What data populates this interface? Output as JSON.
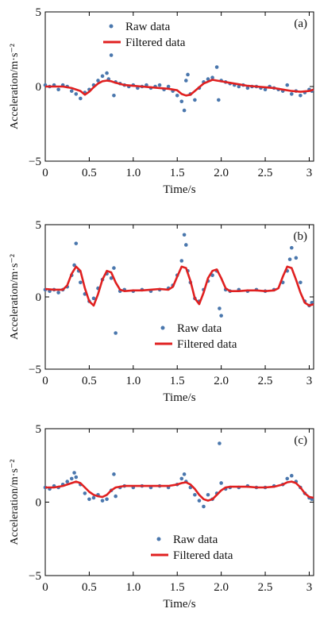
{
  "figure": {
    "panels_count": 3,
    "colors": {
      "raw": "#4a77ad",
      "filtered": "#e02020",
      "axis": "#000000"
    }
  },
  "chart_data": [
    {
      "type": "scatter",
      "panel_label": "(a)",
      "xlabel": "Time/s",
      "ylabel": "Acceleration/m·s⁻²",
      "xlim": [
        0,
        3.05
      ],
      "ylim": [
        -5,
        5
      ],
      "xticks": [
        0,
        0.5,
        1.0,
        1.5,
        2.0,
        2.5,
        3
      ],
      "xtick_labels": [
        "0",
        "0.5",
        "1.0",
        "1.5",
        "2.0",
        "2.5",
        "3"
      ],
      "yticks": [
        -5,
        0,
        5
      ],
      "ytick_labels": [
        "−5",
        "0",
        "5"
      ],
      "legend": {
        "position": "top-center",
        "entries": [
          "Raw data",
          "Filtered data"
        ]
      },
      "series": [
        {
          "name": "Raw data",
          "kind": "points",
          "x": [
            0.0,
            0.05,
            0.1,
            0.15,
            0.2,
            0.25,
            0.3,
            0.35,
            0.4,
            0.45,
            0.5,
            0.55,
            0.6,
            0.65,
            0.7,
            0.72,
            0.75,
            0.78,
            0.8,
            0.85,
            0.9,
            0.95,
            1.0,
            1.05,
            1.1,
            1.15,
            1.2,
            1.25,
            1.3,
            1.35,
            1.4,
            1.45,
            1.5,
            1.55,
            1.58,
            1.6,
            1.62,
            1.65,
            1.7,
            1.75,
            1.8,
            1.85,
            1.9,
            1.95,
            1.97,
            2.0,
            2.05,
            2.1,
            2.15,
            2.2,
            2.25,
            2.3,
            2.35,
            2.4,
            2.45,
            2.5,
            2.55,
            2.6,
            2.65,
            2.7,
            2.75,
            2.8,
            2.85,
            2.9,
            2.95,
            3.0,
            3.03
          ],
          "y": [
            0.1,
            0.0,
            0.1,
            -0.2,
            0.1,
            0.0,
            -0.3,
            -0.5,
            -0.8,
            -0.4,
            -0.2,
            0.1,
            0.4,
            0.7,
            0.9,
            0.5,
            2.1,
            -0.6,
            0.3,
            0.2,
            0.1,
            0.0,
            0.1,
            -0.1,
            0.0,
            0.1,
            -0.1,
            0.0,
            0.1,
            -0.2,
            0.0,
            -0.3,
            -0.6,
            -1.0,
            -1.6,
            0.4,
            0.8,
            -0.5,
            -0.9,
            -0.1,
            0.3,
            0.5,
            0.6,
            1.3,
            -0.9,
            0.4,
            0.3,
            0.2,
            0.1,
            0.0,
            0.1,
            -0.1,
            0.0,
            0.0,
            -0.1,
            -0.2,
            0.0,
            -0.1,
            -0.2,
            -0.3,
            0.1,
            -0.5,
            -0.3,
            -0.6,
            -0.4,
            -0.2,
            -0.3
          ]
        },
        {
          "name": "Filtered data",
          "kind": "line",
          "x": [
            0.0,
            0.1,
            0.2,
            0.3,
            0.4,
            0.45,
            0.5,
            0.55,
            0.6,
            0.65,
            0.7,
            0.75,
            0.8,
            0.9,
            1.0,
            1.1,
            1.2,
            1.3,
            1.4,
            1.5,
            1.55,
            1.6,
            1.65,
            1.7,
            1.8,
            1.9,
            1.95,
            2.0,
            2.1,
            2.2,
            2.3,
            2.4,
            2.5,
            2.6,
            2.7,
            2.8,
            2.9,
            3.0,
            3.05
          ],
          "y": [
            0.0,
            0.0,
            0.0,
            -0.1,
            -0.3,
            -0.55,
            -0.35,
            -0.05,
            0.2,
            0.35,
            0.4,
            0.35,
            0.25,
            0.1,
            0.05,
            0.0,
            -0.05,
            -0.1,
            -0.15,
            -0.25,
            -0.5,
            -0.6,
            -0.55,
            -0.3,
            0.2,
            0.45,
            0.4,
            0.35,
            0.25,
            0.15,
            0.05,
            0.0,
            -0.05,
            -0.1,
            -0.2,
            -0.3,
            -0.35,
            -0.3,
            -0.2
          ]
        }
      ]
    },
    {
      "type": "scatter",
      "panel_label": "(b)",
      "xlabel": "Time/s",
      "ylabel": "Acceleration/m·s⁻²",
      "xlim": [
        0,
        3.05
      ],
      "ylim": [
        -5,
        5
      ],
      "xticks": [
        0,
        0.5,
        1.0,
        1.5,
        2.0,
        2.5,
        3
      ],
      "xtick_labels": [
        "0",
        "0.5",
        "1.0",
        "1.5",
        "2.0",
        "2.5",
        "3"
      ],
      "yticks": [
        -5,
        0,
        5
      ],
      "ytick_labels": [
        "−5",
        "0",
        "5"
      ],
      "legend": {
        "position": "bottom-center",
        "entries": [
          "Raw data",
          "Filtered data"
        ]
      },
      "series": [
        {
          "name": "Raw data",
          "kind": "points",
          "x": [
            0.0,
            0.05,
            0.1,
            0.15,
            0.2,
            0.25,
            0.3,
            0.33,
            0.35,
            0.38,
            0.4,
            0.45,
            0.5,
            0.55,
            0.6,
            0.65,
            0.7,
            0.75,
            0.78,
            0.8,
            0.85,
            0.9,
            1.0,
            1.1,
            1.2,
            1.3,
            1.4,
            1.45,
            1.5,
            1.55,
            1.58,
            1.6,
            1.62,
            1.65,
            1.7,
            1.75,
            1.8,
            1.85,
            1.9,
            1.95,
            1.98,
            2.0,
            2.05,
            2.1,
            2.2,
            2.3,
            2.4,
            2.5,
            2.6,
            2.7,
            2.75,
            2.78,
            2.8,
            2.85,
            2.9,
            2.95,
            3.0,
            3.03
          ],
          "y": [
            0.5,
            0.4,
            0.5,
            0.3,
            0.5,
            0.7,
            1.5,
            2.2,
            3.7,
            1.8,
            1.0,
            0.2,
            -0.3,
            -0.1,
            0.6,
            1.2,
            1.6,
            1.3,
            2.0,
            -2.5,
            0.4,
            0.5,
            0.4,
            0.5,
            0.4,
            0.5,
            0.6,
            0.8,
            1.5,
            2.5,
            4.3,
            3.6,
            1.8,
            1.0,
            -0.1,
            -0.3,
            0.5,
            1.1,
            1.5,
            1.8,
            -0.8,
            -1.3,
            0.5,
            0.4,
            0.5,
            0.4,
            0.5,
            0.4,
            0.5,
            1.0,
            1.8,
            2.6,
            3.4,
            2.7,
            1.0,
            -0.3,
            -0.6,
            -0.4
          ]
        },
        {
          "name": "Filtered data",
          "kind": "line",
          "x": [
            0.0,
            0.1,
            0.2,
            0.25,
            0.3,
            0.35,
            0.4,
            0.45,
            0.5,
            0.55,
            0.6,
            0.65,
            0.7,
            0.75,
            0.8,
            0.85,
            0.9,
            1.0,
            1.1,
            1.2,
            1.3,
            1.4,
            1.45,
            1.5,
            1.55,
            1.6,
            1.65,
            1.7,
            1.75,
            1.8,
            1.85,
            1.9,
            1.95,
            2.0,
            2.05,
            2.1,
            2.2,
            2.3,
            2.4,
            2.5,
            2.6,
            2.65,
            2.7,
            2.75,
            2.8,
            2.85,
            2.9,
            2.95,
            3.0,
            3.05
          ],
          "y": [
            0.55,
            0.5,
            0.5,
            0.8,
            1.6,
            2.1,
            1.8,
            0.6,
            -0.3,
            -0.6,
            0.2,
            1.2,
            1.8,
            1.7,
            1.0,
            0.5,
            0.4,
            0.45,
            0.45,
            0.5,
            0.55,
            0.5,
            0.7,
            1.4,
            2.1,
            2.0,
            1.1,
            -0.1,
            -0.5,
            0.3,
            1.3,
            1.8,
            1.9,
            1.3,
            0.6,
            0.4,
            0.4,
            0.45,
            0.45,
            0.4,
            0.45,
            0.6,
            1.4,
            2.1,
            2.0,
            1.2,
            0.3,
            -0.4,
            -0.6,
            -0.5
          ]
        }
      ]
    },
    {
      "type": "scatter",
      "panel_label": "(c)",
      "xlabel": "Time/s",
      "ylabel": "Acceleration/m·s⁻²",
      "xlim": [
        0,
        3.05
      ],
      "ylim": [
        -5,
        5
      ],
      "xticks": [
        0,
        0.5,
        1.0,
        1.5,
        2.0,
        2.5,
        3
      ],
      "xtick_labels": [
        "0",
        "0.5",
        "1.0",
        "1.5",
        "2.0",
        "2.5",
        "3"
      ],
      "yticks": [
        -5,
        0,
        5
      ],
      "ytick_labels": [
        "−5",
        "0",
        "5"
      ],
      "legend": {
        "position": "bottom-center",
        "entries": [
          "Raw data",
          "Filtered data"
        ]
      },
      "series": [
        {
          "name": "Raw data",
          "kind": "points",
          "x": [
            0.0,
            0.05,
            0.1,
            0.15,
            0.2,
            0.25,
            0.3,
            0.33,
            0.35,
            0.4,
            0.45,
            0.5,
            0.55,
            0.6,
            0.65,
            0.7,
            0.75,
            0.78,
            0.8,
            0.85,
            0.9,
            1.0,
            1.1,
            1.2,
            1.3,
            1.4,
            1.5,
            1.55,
            1.58,
            1.6,
            1.65,
            1.7,
            1.75,
            1.8,
            1.85,
            1.9,
            1.95,
            1.98,
            2.0,
            2.05,
            2.1,
            2.2,
            2.3,
            2.4,
            2.5,
            2.6,
            2.7,
            2.75,
            2.8,
            2.85,
            2.9,
            2.95,
            3.0,
            3.03
          ],
          "y": [
            1.0,
            0.9,
            1.1,
            1.0,
            1.2,
            1.4,
            1.6,
            2.0,
            1.7,
            1.2,
            0.6,
            0.2,
            0.3,
            0.5,
            0.1,
            0.2,
            0.8,
            1.9,
            0.4,
            1.0,
            1.1,
            1.0,
            1.1,
            1.0,
            1.1,
            1.0,
            1.2,
            1.6,
            1.9,
            1.4,
            1.0,
            0.5,
            0.1,
            -0.3,
            0.5,
            0.2,
            0.6,
            4.0,
            1.3,
            0.9,
            1.0,
            1.0,
            1.1,
            1.0,
            1.0,
            1.1,
            1.2,
            1.6,
            1.8,
            1.4,
            1.0,
            0.6,
            0.3,
            0.2
          ]
        },
        {
          "name": "Filtered data",
          "kind": "line",
          "x": [
            0.0,
            0.1,
            0.2,
            0.3,
            0.35,
            0.4,
            0.45,
            0.5,
            0.55,
            0.6,
            0.65,
            0.7,
            0.75,
            0.8,
            0.9,
            1.0,
            1.1,
            1.2,
            1.3,
            1.4,
            1.5,
            1.55,
            1.6,
            1.65,
            1.7,
            1.75,
            1.8,
            1.85,
            1.9,
            1.95,
            2.0,
            2.05,
            2.1,
            2.2,
            2.3,
            2.4,
            2.5,
            2.6,
            2.7,
            2.75,
            2.8,
            2.85,
            2.9,
            2.95,
            3.0,
            3.05
          ],
          "y": [
            1.0,
            1.0,
            1.1,
            1.3,
            1.4,
            1.3,
            1.0,
            0.7,
            0.5,
            0.4,
            0.35,
            0.5,
            0.8,
            1.0,
            1.1,
            1.1,
            1.1,
            1.1,
            1.1,
            1.1,
            1.2,
            1.3,
            1.35,
            1.2,
            0.9,
            0.5,
            0.2,
            0.1,
            0.2,
            0.5,
            0.8,
            1.0,
            1.05,
            1.05,
            1.05,
            1.0,
            1.0,
            1.05,
            1.2,
            1.35,
            1.4,
            1.3,
            1.0,
            0.6,
            0.35,
            0.3
          ]
        }
      ]
    }
  ]
}
